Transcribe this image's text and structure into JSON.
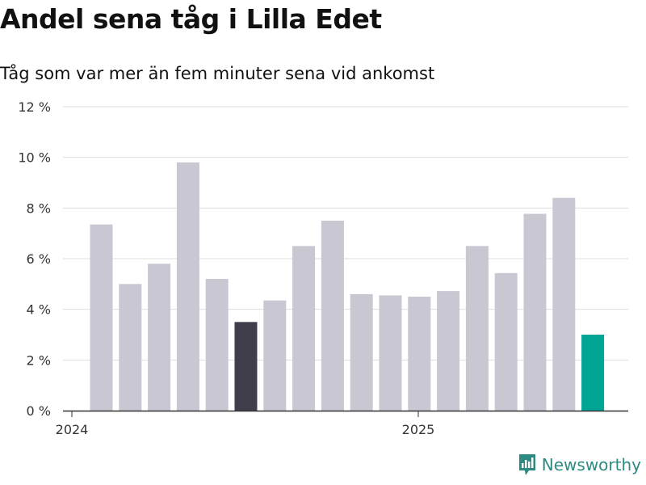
{
  "title": "Andel sena tåg i Lilla Edet",
  "subtitle": "Tåg som var mer än fem minuter sena vid ankomst",
  "logo_text": "Newsworthy",
  "colors": {
    "bar": "#c8c7d2",
    "highlight_dark": "#3f3e4a",
    "highlight_teal": "#00a596",
    "grid": "#dddddd",
    "axis": "#333333",
    "logo": "#2d8a80"
  },
  "chart_data": {
    "type": "bar",
    "title": "Andel sena tåg i Lilla Edet",
    "subtitle": "Tåg som var mer än fem minuter sena vid ankomst",
    "ylim": [
      0,
      12
    ],
    "y_ticks": [
      "0 %",
      "2 %",
      "4 %",
      "6 %",
      "8 %",
      "10 %",
      "12 %"
    ],
    "x_tick_labels": [
      "2024",
      "2025"
    ],
    "values": [
      7.35,
      5.0,
      5.8,
      9.8,
      5.2,
      3.5,
      4.35,
      6.5,
      7.5,
      4.6,
      4.55,
      4.5,
      4.72,
      6.5,
      5.43,
      7.77,
      8.4,
      3.0
    ],
    "bar_colors": [
      "bar",
      "bar",
      "bar",
      "bar",
      "bar",
      "highlight_dark",
      "bar",
      "bar",
      "bar",
      "bar",
      "bar",
      "bar",
      "bar",
      "bar",
      "bar",
      "bar",
      "bar",
      "highlight_teal"
    ],
    "grid": true
  }
}
